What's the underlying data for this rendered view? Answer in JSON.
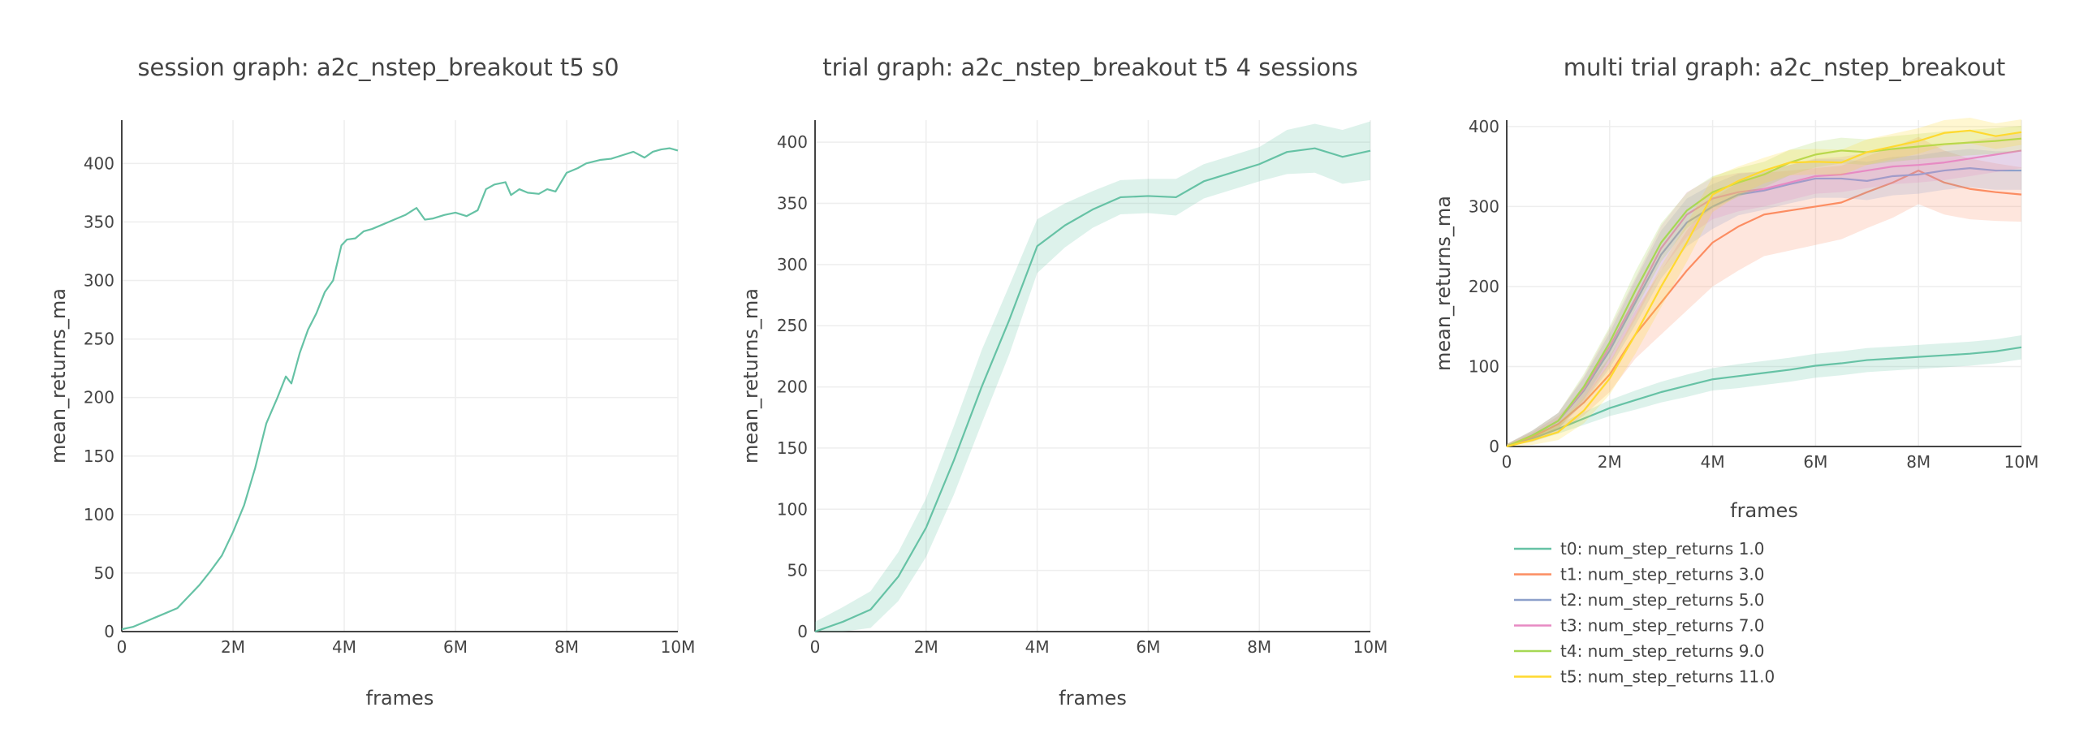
{
  "colors": {
    "text": "#444444",
    "grid": "#eeeeee",
    "axis": "#444444"
  },
  "chart_data": [
    {
      "type": "line",
      "title": "session graph: a2c_nstep_breakout t5 s0",
      "xlabel": "frames",
      "ylabel": "mean_returns_ma",
      "xlim": [
        0,
        10000000
      ],
      "ylim": [
        0,
        437
      ],
      "x_ticks": [
        0,
        2000000,
        4000000,
        6000000,
        8000000,
        10000000
      ],
      "x_tick_labels": [
        "0",
        "2M",
        "4M",
        "6M",
        "8M",
        "10M"
      ],
      "y_ticks": [
        0,
        50,
        100,
        150,
        200,
        250,
        300,
        350,
        400
      ],
      "y_tick_labels": [
        "0",
        "50",
        "100",
        "150",
        "200",
        "250",
        "300",
        "350",
        "400"
      ],
      "grid": true,
      "legend": "none",
      "series": [
        {
          "color": "#66c2a5",
          "x": [
            0,
            200000,
            400000,
            600000,
            800000,
            1000000,
            1200000,
            1400000,
            1600000,
            1800000,
            2000000,
            2200000,
            2400000,
            2600000,
            2800000,
            2950000,
            3050000,
            3200000,
            3350000,
            3500000,
            3650000,
            3800000,
            3950000,
            4050000,
            4200000,
            4350000,
            4500000,
            4700000,
            4900000,
            5100000,
            5300000,
            5450000,
            5600000,
            5800000,
            6000000,
            6200000,
            6400000,
            6550000,
            6700000,
            6900000,
            7000000,
            7150000,
            7300000,
            7500000,
            7650000,
            7800000,
            8000000,
            8200000,
            8350000,
            8600000,
            8800000,
            9000000,
            9200000,
            9400000,
            9550000,
            9700000,
            9850000,
            10000000
          ],
          "y": [
            2,
            4,
            8,
            12,
            16,
            20,
            30,
            40,
            52,
            65,
            85,
            108,
            140,
            178,
            200,
            218,
            212,
            238,
            258,
            272,
            290,
            300,
            330,
            335,
            336,
            342,
            344,
            348,
            352,
            356,
            362,
            352,
            353,
            356,
            358,
            355,
            360,
            378,
            382,
            384,
            373,
            378,
            375,
            374,
            378,
            376,
            392,
            396,
            400,
            403,
            404,
            407,
            410,
            405,
            410,
            412,
            413,
            411
          ]
        }
      ]
    },
    {
      "type": "line",
      "title": "trial graph: a2c_nstep_breakout t5 4 sessions",
      "xlabel": "frames",
      "ylabel": "mean_returns_ma",
      "xlim": [
        0,
        10000000
      ],
      "ylim": [
        0,
        418
      ],
      "x_ticks": [
        0,
        2000000,
        4000000,
        6000000,
        8000000,
        10000000
      ],
      "x_tick_labels": [
        "0",
        "2M",
        "4M",
        "6M",
        "8M",
        "10M"
      ],
      "y_ticks": [
        0,
        50,
        100,
        150,
        200,
        250,
        300,
        350,
        400
      ],
      "y_tick_labels": [
        "0",
        "50",
        "100",
        "150",
        "200",
        "250",
        "300",
        "350",
        "400"
      ],
      "grid": true,
      "legend": "none",
      "series": [
        {
          "color": "#66c2a5",
          "x": [
            0,
            500000,
            1000000,
            1500000,
            2000000,
            2500000,
            3000000,
            3500000,
            4000000,
            4500000,
            5000000,
            5500000,
            6000000,
            6500000,
            7000000,
            7500000,
            8000000,
            8500000,
            9000000,
            9500000,
            10000000
          ],
          "y": [
            0,
            8,
            18,
            45,
            85,
            140,
            200,
            255,
            315,
            332,
            345,
            355,
            356,
            355,
            368,
            375,
            382,
            392,
            395,
            388,
            393
          ],
          "band": [
            8,
            12,
            15,
            20,
            24,
            28,
            30,
            28,
            22,
            18,
            15,
            14,
            14,
            15,
            14,
            14,
            14,
            18,
            20,
            22,
            24
          ]
        }
      ]
    },
    {
      "type": "line",
      "title": "multi trial graph: a2c_nstep_breakout",
      "xlabel": "frames",
      "ylabel": "mean_returns_ma",
      "xlim": [
        0,
        10000000
      ],
      "ylim": [
        0,
        408
      ],
      "x_ticks": [
        0,
        2000000,
        4000000,
        6000000,
        8000000,
        10000000
      ],
      "x_tick_labels": [
        "0",
        "2M",
        "4M",
        "6M",
        "8M",
        "10M"
      ],
      "y_ticks": [
        0,
        100,
        200,
        300,
        400
      ],
      "y_tick_labels": [
        "0",
        "100",
        "200",
        "300",
        "400"
      ],
      "grid": true,
      "legend": "bottom",
      "x": [
        0,
        500000,
        1000000,
        1500000,
        2000000,
        2500000,
        3000000,
        3500000,
        4000000,
        4500000,
        5000000,
        5500000,
        6000000,
        6500000,
        7000000,
        7500000,
        8000000,
        8500000,
        9000000,
        9500000,
        10000000
      ],
      "series": [
        {
          "name": "t0: num_step_returns 1.0",
          "color": "#66c2a5",
          "y": [
            0,
            10,
            22,
            35,
            48,
            58,
            68,
            76,
            84,
            88,
            92,
            96,
            101,
            104,
            108,
            110,
            112,
            114,
            116,
            119,
            124
          ],
          "band": [
            2,
            4,
            6,
            8,
            10,
            12,
            13,
            14,
            14,
            15,
            15,
            15,
            15,
            15,
            15,
            15,
            15,
            15,
            15,
            15,
            15
          ]
        },
        {
          "name": "t1: num_step_returns 3.0",
          "color": "#fc8d62",
          "y": [
            0,
            12,
            28,
            55,
            90,
            140,
            180,
            220,
            255,
            275,
            290,
            295,
            300,
            305,
            318,
            330,
            345,
            330,
            322,
            318,
            315
          ],
          "band": [
            3,
            6,
            10,
            16,
            22,
            30,
            40,
            50,
            55,
            55,
            52,
            50,
            48,
            46,
            45,
            44,
            42,
            40,
            38,
            36,
            34
          ]
        },
        {
          "name": "t2: num_step_returns 5.0",
          "color": "#8da0cb",
          "y": [
            0,
            14,
            32,
            70,
            120,
            180,
            240,
            280,
            300,
            315,
            320,
            328,
            335,
            335,
            332,
            338,
            340,
            345,
            348,
            345,
            345
          ],
          "band": [
            3,
            6,
            10,
            16,
            22,
            28,
            30,
            30,
            28,
            26,
            24,
            24,
            24,
            24,
            24,
            24,
            24,
            24,
            24,
            24,
            24
          ]
        },
        {
          "name": "t3: num_step_returns 7.0",
          "color": "#e78ac3",
          "y": [
            0,
            14,
            32,
            72,
            125,
            185,
            248,
            290,
            310,
            318,
            322,
            330,
            338,
            340,
            345,
            350,
            352,
            355,
            360,
            365,
            370
          ],
          "band": [
            3,
            6,
            10,
            16,
            22,
            26,
            28,
            28,
            26,
            24,
            22,
            22,
            22,
            22,
            22,
            22,
            22,
            22,
            22,
            22,
            22
          ]
        },
        {
          "name": "t4: num_step_returns 9.0",
          "color": "#a6d854",
          "y": [
            0,
            14,
            32,
            75,
            130,
            195,
            255,
            295,
            318,
            330,
            340,
            355,
            365,
            370,
            368,
            372,
            375,
            378,
            380,
            382,
            385
          ],
          "band": [
            3,
            6,
            10,
            16,
            20,
            24,
            24,
            22,
            20,
            18,
            16,
            16,
            16,
            16,
            16,
            16,
            16,
            16,
            16,
            16,
            16
          ]
        },
        {
          "name": "t5: num_step_returns 11.0",
          "color": "#ffd92f",
          "y": [
            0,
            8,
            18,
            45,
            85,
            140,
            200,
            255,
            315,
            332,
            345,
            355,
            356,
            355,
            368,
            375,
            382,
            392,
            395,
            388,
            393
          ],
          "band": [
            3,
            6,
            10,
            16,
            20,
            24,
            26,
            24,
            22,
            18,
            16,
            16,
            16,
            16,
            16,
            16,
            16,
            16,
            16,
            16,
            16
          ]
        }
      ]
    }
  ]
}
